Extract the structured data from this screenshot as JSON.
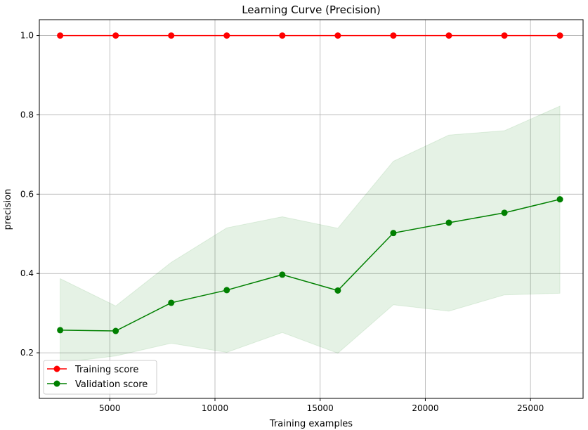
{
  "chart_data": {
    "type": "line",
    "title": "Learning Curve (Precision)",
    "xlabel": "Training examples",
    "ylabel": "precision",
    "xlim": [
      1650,
      27500
    ],
    "ylim": [
      0.085,
      1.04
    ],
    "grid": true,
    "legend_position": "lower-left",
    "x_ticks": [
      5000,
      10000,
      15000,
      20000,
      25000
    ],
    "y_ticks": [
      0.2,
      0.4,
      0.6,
      0.8,
      1.0
    ],
    "x_tick_labels": [
      "5000",
      "10000",
      "15000",
      "20000",
      "25000"
    ],
    "y_tick_labels": [
      "0.2",
      "0.4",
      "0.6",
      "0.8",
      "1.0"
    ],
    "x": [
      2640,
      5280,
      7920,
      10560,
      13200,
      15840,
      18480,
      21120,
      23760,
      26400
    ],
    "series": [
      {
        "name": "Training score",
        "color": "#ff0000",
        "values": [
          1.0,
          1.0,
          1.0,
          1.0,
          1.0,
          1.0,
          1.0,
          1.0,
          1.0,
          1.0
        ],
        "band_upper": [
          1.0,
          1.0,
          1.0,
          1.0,
          1.0,
          1.0,
          1.0,
          1.0,
          1.0,
          1.0
        ],
        "band_lower": [
          1.0,
          1.0,
          1.0,
          1.0,
          1.0,
          1.0,
          1.0,
          1.0,
          1.0,
          1.0
        ]
      },
      {
        "name": "Validation score",
        "color": "#008000",
        "values": [
          0.257,
          0.255,
          0.326,
          0.358,
          0.397,
          0.357,
          0.502,
          0.528,
          0.553,
          0.587
        ],
        "band_upper": [
          0.387,
          0.318,
          0.428,
          0.515,
          0.543,
          0.514,
          0.683,
          0.749,
          0.76,
          0.822
        ],
        "band_lower": [
          0.175,
          0.192,
          0.224,
          0.201,
          0.251,
          0.199,
          0.321,
          0.305,
          0.346,
          0.35
        ]
      }
    ]
  }
}
